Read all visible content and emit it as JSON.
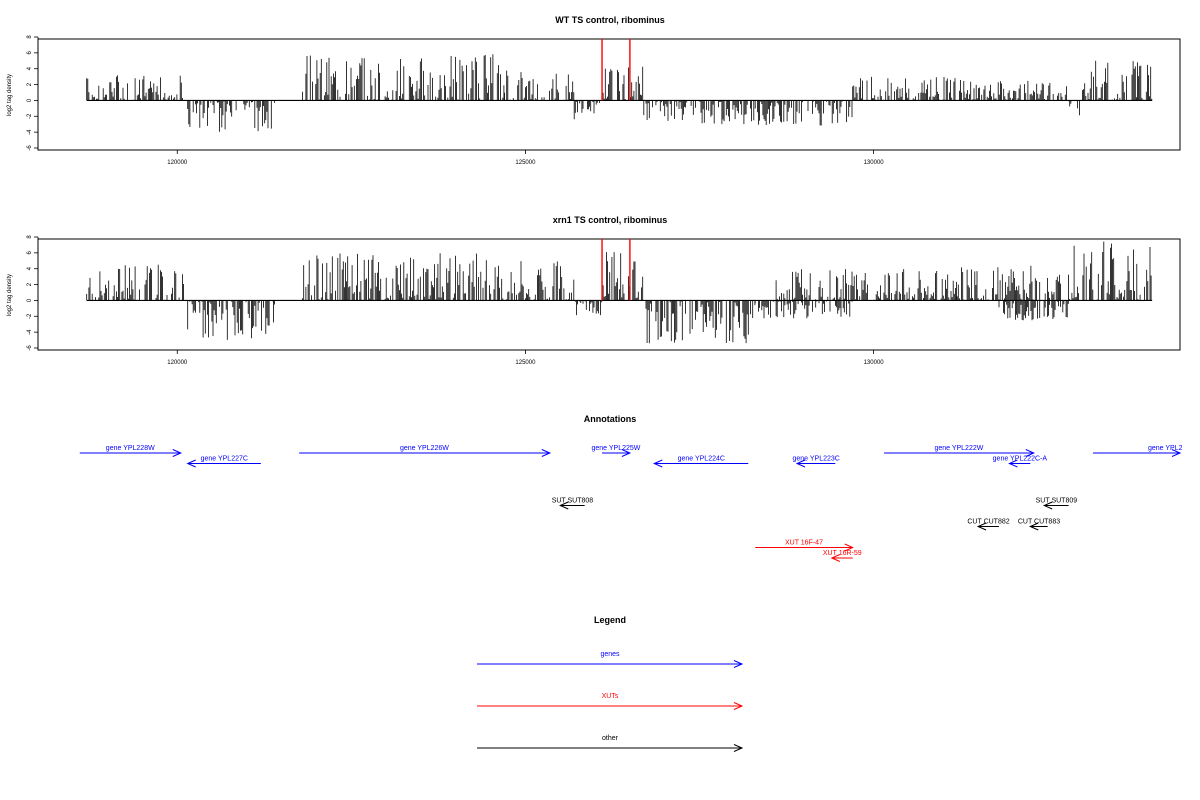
{
  "chart_data": [
    {
      "type": "bar",
      "title": "WT TS control, ribominus",
      "ylabel": "log2 tag density",
      "xlim": [
        118000,
        134400
      ],
      "ylim": [
        -6,
        8
      ],
      "xticks": [
        120000,
        125000,
        130000
      ],
      "yticks": [
        -6,
        -4,
        -2,
        0,
        2,
        4,
        6,
        8
      ],
      "highlight_x": [
        126100,
        126500
      ],
      "highlight_color": "#ff0000",
      "regions": [
        {
          "start": 118700,
          "end": 120100,
          "sign": 1,
          "max": 3.2
        },
        {
          "start": 120150,
          "end": 121400,
          "sign": -1,
          "max": 4.0
        },
        {
          "start": 121800,
          "end": 124700,
          "sign": 1,
          "max": 6.0
        },
        {
          "start": 124700,
          "end": 125700,
          "sign": 1,
          "max": 4.0
        },
        {
          "start": 125700,
          "end": 126100,
          "sign": -1,
          "max": 2.5
        },
        {
          "start": 126100,
          "end": 126700,
          "sign": 1,
          "max": 4.5
        },
        {
          "start": 126700,
          "end": 128300,
          "sign": -1,
          "max": 3.0
        },
        {
          "start": 128300,
          "end": 129700,
          "sign": -1,
          "max": 3.2
        },
        {
          "start": 129700,
          "end": 131300,
          "sign": 1,
          "max": 3.0
        },
        {
          "start": 131300,
          "end": 132800,
          "sign": 1,
          "max": 2.5
        },
        {
          "start": 132800,
          "end": 133000,
          "sign": -1,
          "max": 2.5
        },
        {
          "start": 133000,
          "end": 134000,
          "sign": 1,
          "max": 5.0
        }
      ]
    },
    {
      "type": "bar",
      "title": "xrn1 TS control, ribominus",
      "ylabel": "log2 tag density",
      "xlim": [
        118000,
        134400
      ],
      "ylim": [
        -6,
        8
      ],
      "xticks": [
        120000,
        125000,
        130000
      ],
      "yticks": [
        -6,
        -4,
        -2,
        0,
        2,
        4,
        6,
        8
      ],
      "highlight_x": [
        126100,
        126500
      ],
      "highlight_color": "#ff0000",
      "regions": [
        {
          "start": 118700,
          "end": 120100,
          "sign": 1,
          "max": 4.5
        },
        {
          "start": 120150,
          "end": 121400,
          "sign": -1,
          "max": 5.0
        },
        {
          "start": 121800,
          "end": 124700,
          "sign": 1,
          "max": 6.0
        },
        {
          "start": 124700,
          "end": 125700,
          "sign": 1,
          "max": 5.0
        },
        {
          "start": 125700,
          "end": 126100,
          "sign": -1,
          "max": 2.0
        },
        {
          "start": 126100,
          "end": 126700,
          "sign": 1,
          "max": 6.5
        },
        {
          "start": 126700,
          "end": 128300,
          "sign": -1,
          "max": 5.5
        },
        {
          "start": 128300,
          "end": 129700,
          "sign": -1,
          "max": 2.5
        },
        {
          "start": 128600,
          "end": 131200,
          "sign": 1,
          "max": 4.0
        },
        {
          "start": 131200,
          "end": 132700,
          "sign": 1,
          "max": 4.5
        },
        {
          "start": 131800,
          "end": 132800,
          "sign": -1,
          "max": 2.5
        },
        {
          "start": 132800,
          "end": 134000,
          "sign": 1,
          "max": 7.5
        }
      ]
    }
  ],
  "annotations": {
    "title": "Annotations",
    "features": [
      {
        "label": "gene YPL228W",
        "start": 118600,
        "end": 120050,
        "strand": "+",
        "row": 0,
        "color": "#0000ff"
      },
      {
        "label": "gene YPL227C",
        "start": 120150,
        "end": 121200,
        "strand": "-",
        "row": 1,
        "color": "#0000ff"
      },
      {
        "label": "gene YPL226W",
        "start": 121750,
        "end": 125350,
        "strand": "+",
        "row": 0,
        "color": "#0000ff"
      },
      {
        "label": "gene YPL225W",
        "start": 126100,
        "end": 126500,
        "strand": "+",
        "row": 0,
        "color": "#0000ff"
      },
      {
        "label": "gene YPL224C",
        "start": 126850,
        "end": 128200,
        "strand": "-",
        "row": 1,
        "color": "#0000ff"
      },
      {
        "label": "gene YPL223C",
        "start": 128900,
        "end": 129450,
        "strand": "-",
        "row": 1,
        "color": "#0000ff"
      },
      {
        "label": "gene YPL222W",
        "start": 130150,
        "end": 132300,
        "strand": "+",
        "row": 0,
        "color": "#0000ff"
      },
      {
        "label": "gene YPL222C-A",
        "start": 131950,
        "end": 132250,
        "strand": "-",
        "row": 1,
        "color": "#0000ff"
      },
      {
        "label": "gene YPL2",
        "start": 133150,
        "end": 134400,
        "strand": "+",
        "row": 0,
        "color": "#0000ff"
      },
      {
        "label": "SUT SUT808",
        "start": 125500,
        "end": 125850,
        "strand": "-",
        "row": 5,
        "color": "#000000"
      },
      {
        "label": "SUT SUT809",
        "start": 132450,
        "end": 132800,
        "strand": "-",
        "row": 5,
        "color": "#000000"
      },
      {
        "label": "CUT CUT882",
        "start": 131500,
        "end": 131800,
        "strand": "-",
        "row": 7,
        "color": "#000000"
      },
      {
        "label": "CUT CUT883",
        "start": 132250,
        "end": 132500,
        "strand": "-",
        "row": 7,
        "color": "#000000"
      },
      {
        "label": "XUT 16F-47",
        "start": 128300,
        "end": 129700,
        "strand": "+",
        "row": 9,
        "color": "#ff0000"
      },
      {
        "label": "XUT 16R-59",
        "start": 129400,
        "end": 129700,
        "strand": "-",
        "row": 10,
        "color": "#ff0000"
      }
    ]
  },
  "legend": {
    "title": "Legend",
    "items": [
      {
        "label": "genes",
        "color": "#0000ff"
      },
      {
        "label": "XUTs",
        "color": "#ff0000"
      },
      {
        "label": "other",
        "color": "#000000"
      }
    ]
  }
}
